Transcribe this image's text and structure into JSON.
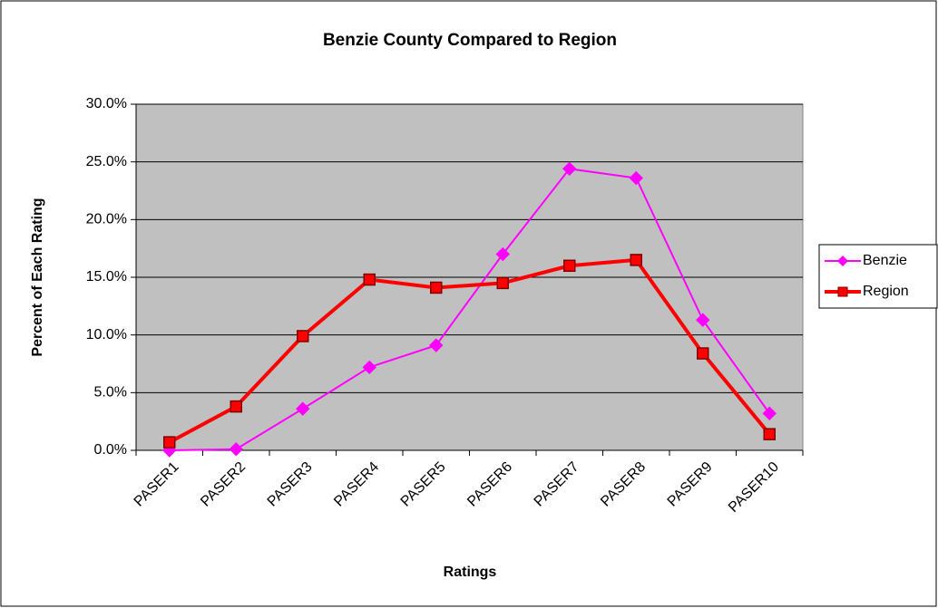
{
  "chart_data": {
    "type": "line",
    "title": "Benzie County Compared to Region",
    "x_label": "Ratings",
    "y_label": "Percent of Each Rating",
    "categories": [
      "PASER1",
      "PASER2",
      "PASER3",
      "PASER4",
      "PASER5",
      "PASER6",
      "PASER7",
      "PASER8",
      "PASER9",
      "PASER10"
    ],
    "series": [
      {
        "name": "Benzie",
        "color": "#ff00ff",
        "marker": "diamond",
        "values": [
          0.0,
          0.1,
          3.6,
          7.2,
          9.1,
          17.0,
          24.4,
          23.6,
          11.3,
          3.2
        ]
      },
      {
        "name": "Region",
        "color": "#ff0000",
        "marker": "square",
        "values": [
          0.7,
          3.8,
          9.9,
          14.8,
          14.1,
          14.5,
          16.0,
          16.5,
          8.4,
          1.4
        ]
      }
    ],
    "ylim": [
      0,
      30
    ],
    "yticks": [
      {
        "value": 0,
        "label": "0.0%"
      },
      {
        "value": 5,
        "label": "5.0%"
      },
      {
        "value": 10,
        "label": "10.0%"
      },
      {
        "value": 15,
        "label": "15.0%"
      },
      {
        "value": 20,
        "label": "20.0%"
      },
      {
        "value": 25,
        "label": "25.0%"
      },
      {
        "value": 30,
        "label": "30.0%"
      }
    ],
    "grid": true,
    "legend": "right"
  }
}
